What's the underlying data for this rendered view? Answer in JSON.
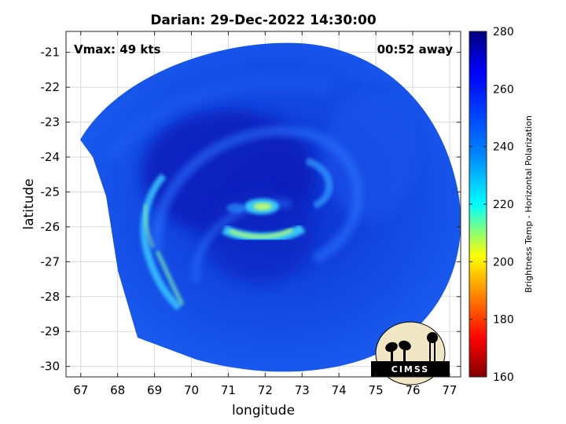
{
  "title": "Darian: 29-Dec-2022 14:30:00",
  "annotations": {
    "vmax": "Vmax: 49 kts",
    "time_away": "00:52 away"
  },
  "axes": {
    "xlabel": "longitude",
    "ylabel": "latitude",
    "xlim": [
      66.6,
      77.3
    ],
    "ylim": [
      -30.3,
      -20.4
    ],
    "xticks": [
      "67",
      "68",
      "69",
      "70",
      "71",
      "72",
      "73",
      "74",
      "75",
      "76",
      "77"
    ],
    "yticks": [
      "-21",
      "-22",
      "-23",
      "-24",
      "-25",
      "-26",
      "-27",
      "-28",
      "-29",
      "-30"
    ],
    "grid": true
  },
  "colorbar": {
    "label": "Brightness Temp - Horizontal Polarization",
    "range": [
      160,
      280
    ],
    "ticks": [
      "280",
      "260",
      "240",
      "220",
      "200",
      "180",
      "160"
    ],
    "colormap": "jet"
  },
  "logo": {
    "text": "CIMSS"
  },
  "imagery": {
    "swath_center": [
      72.0,
      -25.6
    ],
    "eye_center": [
      71.9,
      -25.5
    ],
    "background_temp_k": 268,
    "colors": {
      "deep": "#0a2fd6",
      "mid": "#1f5cf0",
      "band": "#3fd8ff",
      "core": "#c8ff60"
    }
  }
}
